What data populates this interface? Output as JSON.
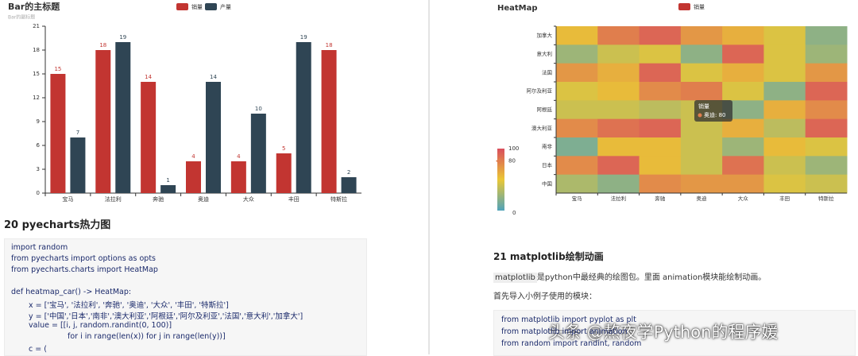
{
  "chart_data": [
    {
      "type": "bar",
      "title": "Bar的主标题",
      "subtitle": "Bar的副标题",
      "categories": [
        "宝马",
        "法拉利",
        "奔驰",
        "奥迪",
        "大众",
        "丰田",
        "特斯拉"
      ],
      "series": [
        {
          "name": "销量",
          "color": "#c23531",
          "values": [
            15,
            18,
            14,
            4,
            4,
            5,
            18
          ]
        },
        {
          "name": "产量",
          "color": "#2f4554",
          "values": [
            7,
            19,
            1,
            14,
            10,
            19,
            2
          ]
        }
      ],
      "ylim": [
        0,
        21
      ],
      "yticks": [
        0,
        3,
        6,
        9,
        12,
        15,
        18,
        21
      ],
      "grid": false
    },
    {
      "type": "heatmap",
      "title": "HeatMap",
      "series_name": "销量",
      "legend_color": "#c23531",
      "x": [
        "宝马",
        "法拉利",
        "奔驰",
        "奥迪",
        "大众",
        "丰田",
        "特斯拉"
      ],
      "y": [
        "加拿大",
        "意大利",
        "法国",
        "阿尔及利亚",
        "阿根廷",
        "澳大利亚",
        "南非",
        "日本",
        "中国"
      ],
      "values": [
        [
          55,
          80,
          90,
          70,
          60,
          45,
          20
        ],
        [
          25,
          40,
          45,
          20,
          90,
          45,
          25
        ],
        [
          70,
          60,
          90,
          45,
          60,
          45,
          70
        ],
        [
          45,
          55,
          75,
          80,
          45,
          20,
          90
        ],
        [
          40,
          40,
          35,
          40,
          20,
          60,
          75
        ],
        [
          75,
          85,
          90,
          40,
          60,
          35,
          90
        ],
        [
          15,
          55,
          55,
          40,
          25,
          55,
          45
        ],
        [
          75,
          90,
          55,
          40,
          85,
          40,
          25
        ],
        [
          30,
          20,
          75,
          70,
          70,
          45,
          40
        ]
      ],
      "visual_map": {
        "min": 0,
        "max": 100,
        "handle_value": 80,
        "colors": [
          "#50a3ba",
          "#eac736",
          "#d94e5d"
        ]
      },
      "tooltip": {
        "name": "销量",
        "text": "奥迪: 80"
      }
    }
  ],
  "document": {
    "left_heading": "20 pyecharts热力图",
    "left_code": [
      "import random",
      "from pyecharts import options as opts",
      "from pyecharts.charts import HeatMap",
      "def heatmap_car() -> HeatMap:",
      "x = ['宝马', '法拉利', '奔驰', '奥迪', '大众', '丰田', '特斯拉']",
      "y = ['中国','日本','南非','澳大利亚','阿根廷','阿尔及利亚','法国','意大利','加拿大']",
      "value = [[i, j, random.randint(0, 100)]",
      "for i in range(len(x)) for j in range(len(y))]",
      "c = ("
    ],
    "right_heading": "21 matplotlib绘制动画",
    "right_para_code": "matplotlib",
    "right_para": "是python中最经典的绘图包。里面 animation模块能绘制动画。",
    "right_line": "首先导入小例子使用的模块：",
    "right_code": [
      "from matplotlib import pyplot as plt",
      "from matplotlib import animation",
      "from random import randint, random"
    ],
    "watermark": "头条 @熬夜学Python的程序媛"
  }
}
